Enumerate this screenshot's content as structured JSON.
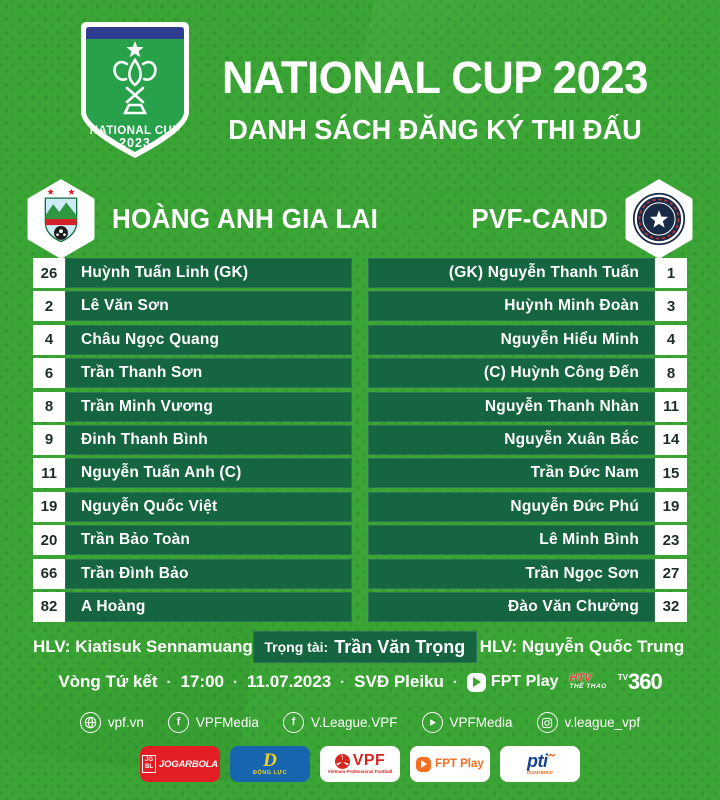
{
  "header": {
    "badge_line1": "NATIONAL CUP",
    "badge_line2": "2023",
    "title": "NATIONAL CUP 2023",
    "subtitle": "DANH SÁCH ĐĂNG KÝ THI ĐẤU"
  },
  "teams": {
    "home": {
      "name": "HOÀNG ANH GIA LAI"
    },
    "away": {
      "name": "PVF-CAND"
    }
  },
  "rosters": {
    "home": [
      {
        "number": "26",
        "name": "Huỳnh Tuấn Linh (GK)"
      },
      {
        "number": "2",
        "name": "Lê Văn Sơn"
      },
      {
        "number": "4",
        "name": "Châu Ngọc Quang"
      },
      {
        "number": "6",
        "name": "Trần Thanh Sơn"
      },
      {
        "number": "8",
        "name": "Trần Minh Vương"
      },
      {
        "number": "9",
        "name": "Đinh Thanh Bình"
      },
      {
        "number": "11",
        "name": "Nguyễn Tuấn Anh (C)"
      },
      {
        "number": "19",
        "name": "Nguyễn Quốc Việt"
      },
      {
        "number": "20",
        "name": "Trần Bảo Toàn"
      },
      {
        "number": "66",
        "name": "Trần Đình Bảo"
      },
      {
        "number": "82",
        "name": "A Hoàng"
      }
    ],
    "away": [
      {
        "number": "1",
        "name": "(GK) Nguyễn Thanh Tuấn"
      },
      {
        "number": "3",
        "name": "Huỳnh Minh Đoàn"
      },
      {
        "number": "4",
        "name": "Nguyễn Hiểu Minh"
      },
      {
        "number": "8",
        "name": "(C) Huỳnh Công Đến"
      },
      {
        "number": "11",
        "name": "Nguyễn Thanh Nhàn"
      },
      {
        "number": "14",
        "name": "Nguyễn Xuân Bắc"
      },
      {
        "number": "15",
        "name": "Trần Đức Nam"
      },
      {
        "number": "19",
        "name": "Nguyễn Đức Phú"
      },
      {
        "number": "23",
        "name": "Lê Minh Bình"
      },
      {
        "number": "27",
        "name": "Trần Ngọc Sơn"
      },
      {
        "number": "32",
        "name": "Đào Văn Chưởng"
      }
    ]
  },
  "officials": {
    "home_coach_label": "HLV:",
    "home_coach_name": "Kiatisuk Sennamuang",
    "referee_label": "Trọng tài:",
    "referee_name": "Trần Văn Trọng",
    "away_coach_label": "HLV:",
    "away_coach_name": "Nguyễn Quốc Trung"
  },
  "match_info": {
    "round": "Vòng Tứ kết",
    "time": "17:00",
    "date": "11.07.2023",
    "venue": "SVĐ Pleiku",
    "separator": "·"
  },
  "broadcast": {
    "fpt_play": "FPT Play",
    "htv_line1": "HTV",
    "htv_line2": "THỂ THAO",
    "tv360_sup": "TV",
    "tv360_num": "360"
  },
  "social": [
    {
      "icon": "globe",
      "label": "vpf.vn"
    },
    {
      "icon": "facebook",
      "label": "VPFMedia"
    },
    {
      "icon": "facebook",
      "label": "V.League.VPF"
    },
    {
      "icon": "youtube",
      "label": "VPFMedia"
    },
    {
      "icon": "instagram",
      "label": "v.league_vpf"
    }
  ],
  "sponsors": {
    "jogarbola": {
      "icon_line1": "JG",
      "icon_line2": "BL",
      "label": "JOGARBOLA"
    },
    "dong_luc": {
      "letter": "D",
      "label": "ĐỘNG LỰC"
    },
    "vpf": {
      "label": "VPF",
      "sub": "Vietnam Professional Football"
    },
    "fpt_play": {
      "label": "FPT Play"
    },
    "pti": {
      "label": "pti",
      "sub": "Insurance"
    }
  },
  "colors": {
    "background_green": "#3aa534",
    "row_green": "#156540",
    "badge_blue": "#2e3d8f",
    "shield_green": "#27a24b",
    "jogarbola_red": "#e31e25",
    "dong_luc_blue": "#1765af",
    "vpf_red": "#d8241f",
    "fpt_orange": "#f26f21",
    "pti_blue": "#16418f"
  }
}
